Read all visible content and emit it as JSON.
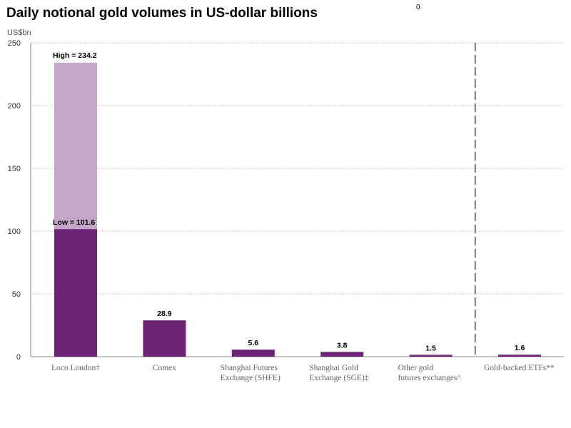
{
  "page_number": "0",
  "chart_data": {
    "type": "bar",
    "title": "Daily notional gold volumes in US-dollar billions",
    "ylabel": "US$bn",
    "xlabel": "",
    "ylim": [
      0,
      250
    ],
    "yticks": [
      0,
      50,
      100,
      150,
      200,
      250
    ],
    "grid": true,
    "categories": [
      [
        "Loco London†"
      ],
      [
        "Comex"
      ],
      [
        "Shanghai Futures",
        "Exchange (SHFE)"
      ],
      [
        "Shanghai Gold",
        "Exchange (SGE)‡"
      ],
      [
        "Other gold",
        "futures exchanges^"
      ],
      [
        "Gold-backed ETFs**"
      ]
    ],
    "series": [
      {
        "name": "Low / single value",
        "values": [
          101.6,
          28.9,
          5.6,
          3.8,
          1.5,
          1.6
        ],
        "color": "#6b2474"
      },
      {
        "name": "High",
        "values": [
          234.2,
          null,
          null,
          null,
          null,
          null
        ],
        "color": "#c4a6c8"
      }
    ],
    "data_labels": [
      "Low = 101.6",
      "28.9",
      "5.6",
      "3.8",
      "1.5",
      "1.6"
    ],
    "high_label": "High = 234.2",
    "divider_before_category": 5
  }
}
